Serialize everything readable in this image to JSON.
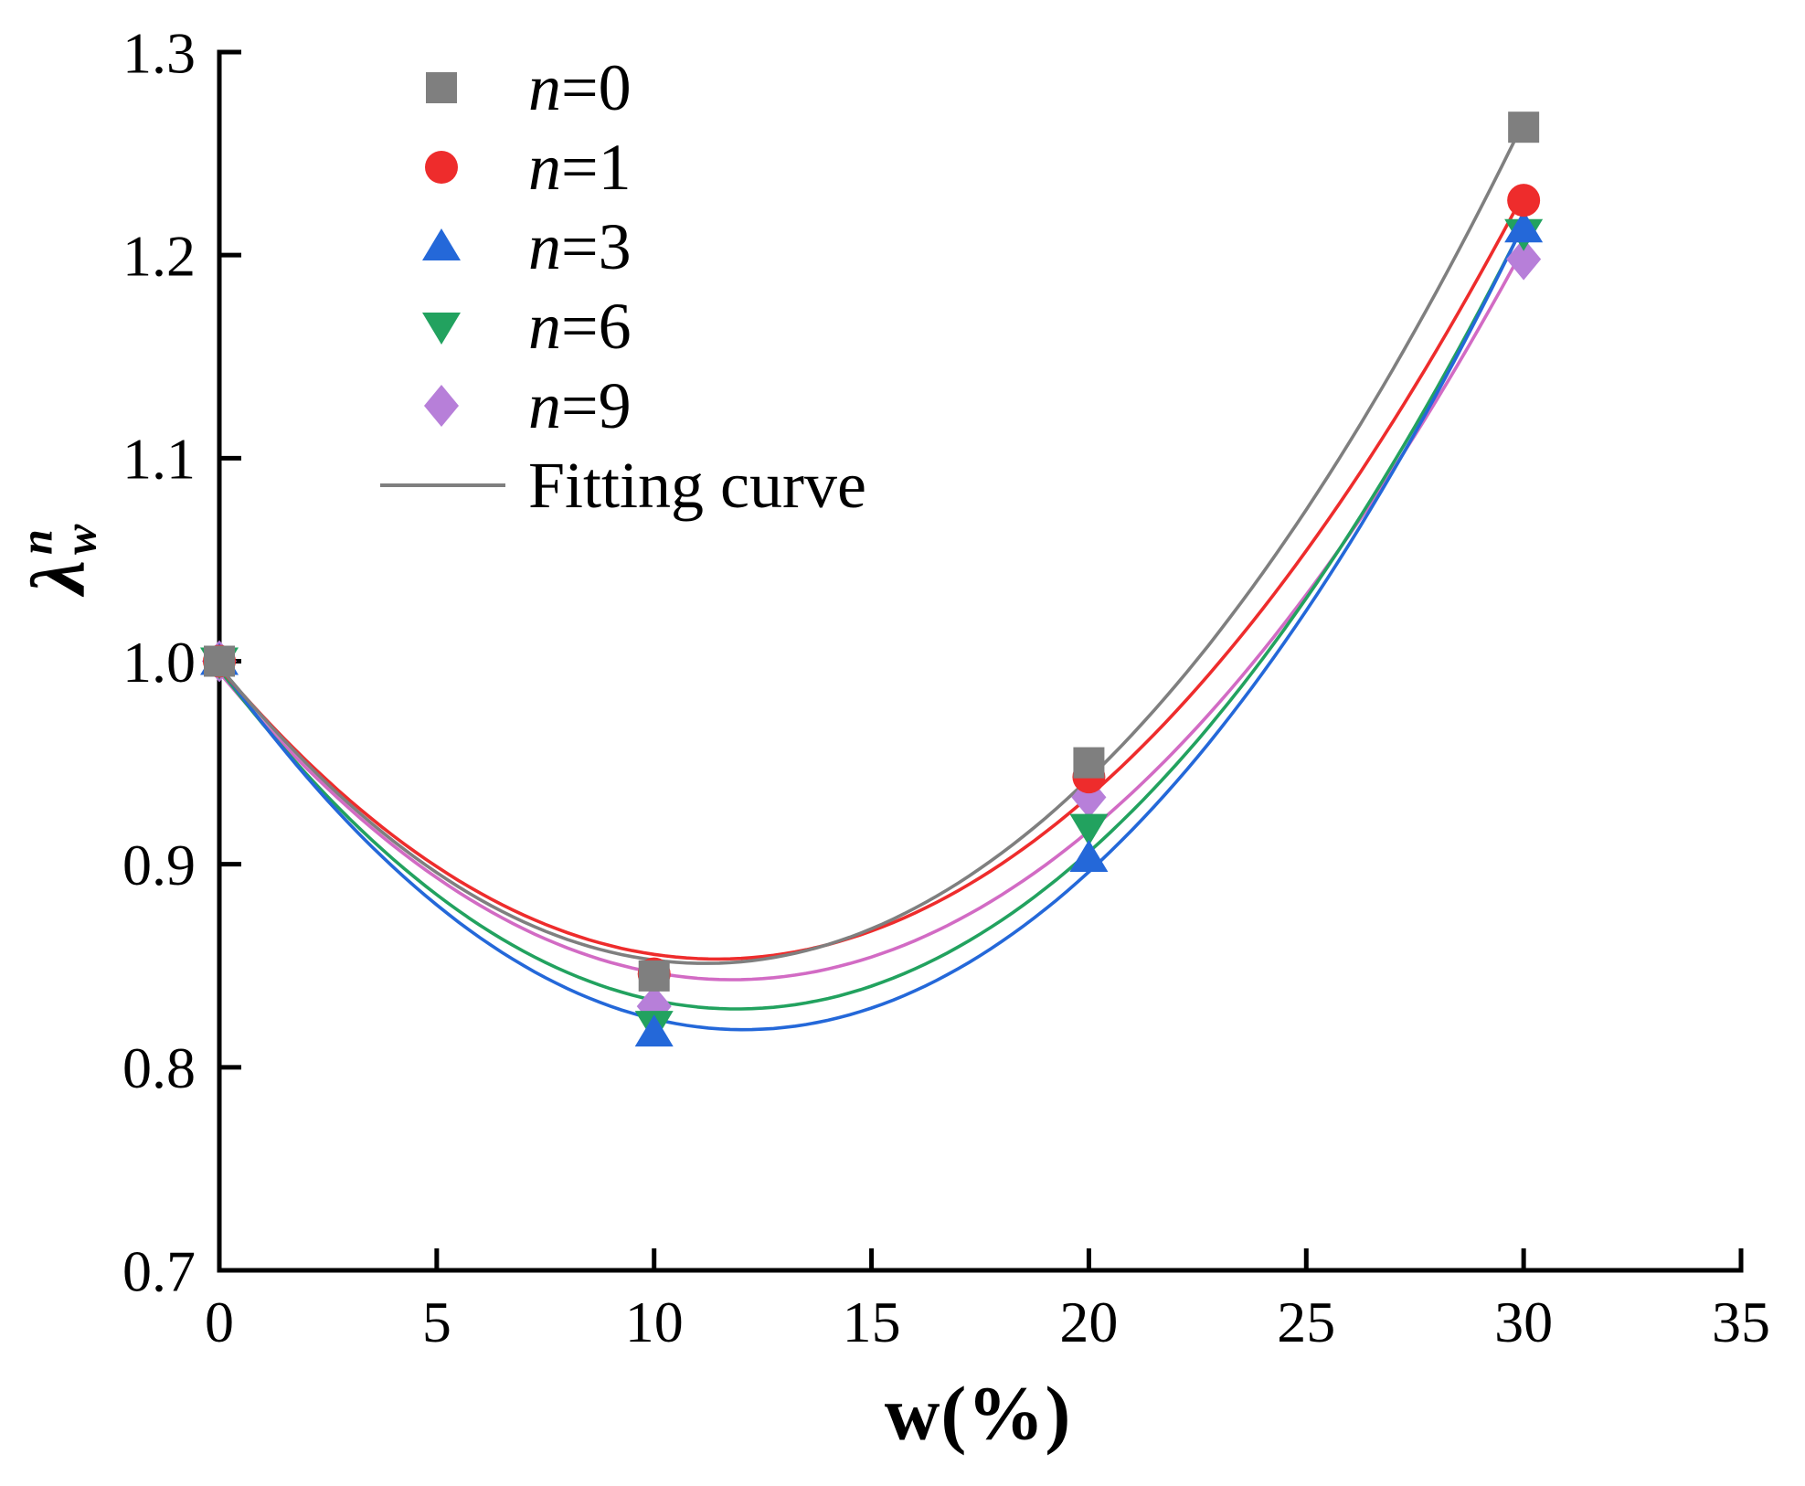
{
  "chart_data": {
    "type": "scatter",
    "title": "",
    "xlabel": "w(%)",
    "ylabel": {
      "symbol": "λ",
      "sup": "n",
      "sub": "w"
    },
    "xlim": [
      0,
      35
    ],
    "ylim": [
      0.7,
      1.3
    ],
    "x_ticks": [
      0,
      5,
      10,
      15,
      20,
      25,
      30,
      35
    ],
    "y_ticks": [
      0.7,
      0.8,
      0.9,
      1.0,
      1.1,
      1.2,
      1.3
    ],
    "grid": false,
    "fit": "quadratic",
    "axis_color": "#000000",
    "series": [
      {
        "label_var": "n",
        "label_rest": "=0",
        "marker": "square",
        "marker_color": "#7f7f7f",
        "line_color": "#7f7f7f",
        "x": [
          0,
          10,
          20,
          30
        ],
        "y": [
          1.0,
          0.845,
          0.95,
          1.263
        ]
      },
      {
        "label_var": "n",
        "label_rest": "=1",
        "marker": "circle",
        "marker_color": "#ee2c2c",
        "line_color": "#ee2c2c",
        "x": [
          0,
          10,
          20,
          30
        ],
        "y": [
          1.0,
          0.846,
          0.943,
          1.227
        ]
      },
      {
        "label_var": "n",
        "label_rest": "=3",
        "marker": "triangle-up",
        "marker_color": "#2468d9",
        "line_color": "#2468d9",
        "x": [
          0,
          10,
          20,
          30
        ],
        "y": [
          1.0,
          0.817,
          0.903,
          1.213
        ]
      },
      {
        "label_var": "n",
        "label_rest": "=6",
        "marker": "triangle-down",
        "marker_color": "#22a25f",
        "line_color": "#22a25f",
        "x": [
          0,
          10,
          20,
          30
        ],
        "y": [
          1.0,
          0.821,
          0.918,
          1.211
        ]
      },
      {
        "label_var": "n",
        "label_rest": "=9",
        "marker": "diamond",
        "marker_color": "#b77fd9",
        "line_color": "#d26bc4",
        "x": [
          0,
          10,
          20,
          30
        ],
        "y": [
          1.0,
          0.83,
          0.933,
          1.198
        ]
      }
    ],
    "legend": {
      "position": "upper-left-inside",
      "fit_label": "Fitting curve",
      "fit_line_color": "#7f7f7f"
    }
  }
}
